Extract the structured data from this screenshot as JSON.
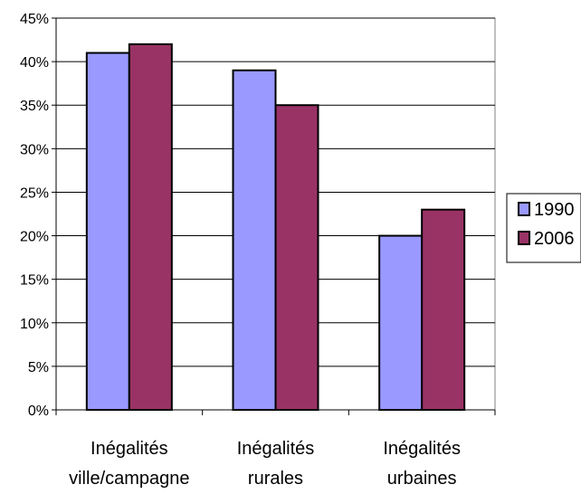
{
  "chart_data": {
    "type": "bar",
    "categories": [
      [
        "Inégalités",
        "ville/campagne"
      ],
      [
        "Inégalités",
        "rurales"
      ],
      [
        "Inégalités",
        "urbaines"
      ]
    ],
    "series": [
      {
        "name": "1990",
        "values": [
          41,
          39,
          20
        ],
        "color": "#9999ff"
      },
      {
        "name": "2006",
        "values": [
          42,
          35,
          23
        ],
        "color": "#993366"
      }
    ],
    "ylim": [
      0,
      45
    ],
    "ystep": 5,
    "ytick_format": "percent",
    "grid": true,
    "legend_position": "right",
    "title": "",
    "xlabel": "",
    "ylabel": ""
  }
}
